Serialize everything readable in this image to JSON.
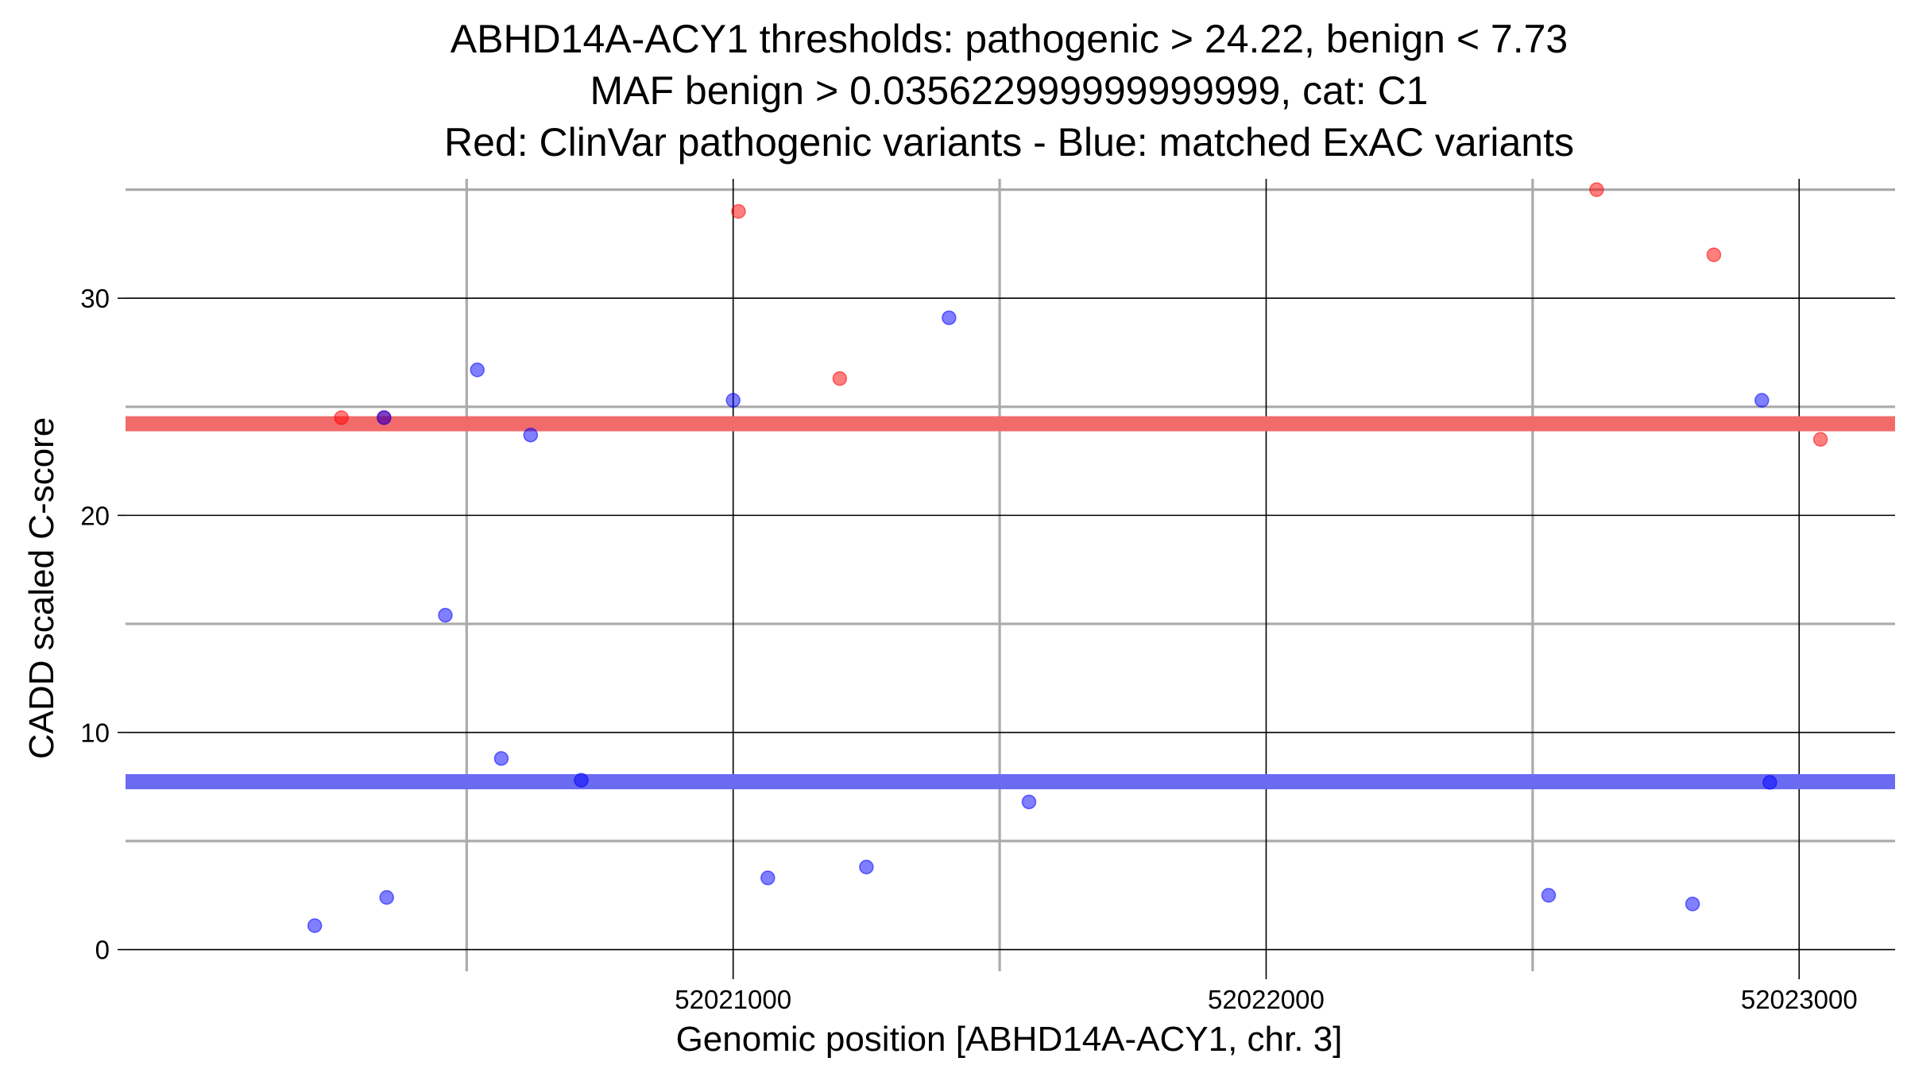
{
  "chart_data": {
    "type": "scatter",
    "title_lines": [
      "ABHD14A-ACY1 thresholds: pathogenic > 24.22, benign < 7.73",
      "MAF benign > 0.035622999999999999, cat: C1",
      "Red: ClinVar pathogenic variants - Blue: matched ExAC variants"
    ],
    "xlabel": "Genomic position [ABHD14A-ACY1, chr. 3]",
    "ylabel": "CADD scaled C-score",
    "xlim": [
      52019860,
      52023180
    ],
    "ylim": [
      -1,
      35.5
    ],
    "x_major_ticks": [
      52021000,
      52022000,
      52023000
    ],
    "x_minor_grid": [
      52020500,
      52021500,
      52022500
    ],
    "y_major_ticks": [
      0,
      10,
      20,
      30
    ],
    "y_minor_grid": [
      5,
      15,
      25,
      35
    ],
    "grid": true,
    "thresholds": [
      {
        "name": "pathogenic",
        "value": 24.22,
        "color": "#f26b6b"
      },
      {
        "name": "benign",
        "value": 7.73,
        "color": "#6b6bf2"
      }
    ],
    "series": [
      {
        "name": "ClinVar pathogenic variants",
        "color": "#ff0000",
        "points": [
          {
            "x": 52020265,
            "y": 24.5
          },
          {
            "x": 52020345,
            "y": 24.5
          },
          {
            "x": 52021010,
            "y": 34.0
          },
          {
            "x": 52021200,
            "y": 26.3
          },
          {
            "x": 52022620,
            "y": 35.0
          },
          {
            "x": 52022840,
            "y": 32.0
          },
          {
            "x": 52023040,
            "y": 23.5
          }
        ]
      },
      {
        "name": "matched ExAC variants",
        "color": "#0000ff",
        "points": [
          {
            "x": 52020215,
            "y": 1.1
          },
          {
            "x": 52020345,
            "y": 24.5
          },
          {
            "x": 52020350,
            "y": 2.4
          },
          {
            "x": 52020460,
            "y": 15.4
          },
          {
            "x": 52020520,
            "y": 26.7
          },
          {
            "x": 52020565,
            "y": 8.8
          },
          {
            "x": 52020620,
            "y": 23.7
          },
          {
            "x": 52020715,
            "y": 7.8
          },
          {
            "x": 52021000,
            "y": 25.3
          },
          {
            "x": 52021065,
            "y": 3.3
          },
          {
            "x": 52021250,
            "y": 3.8
          },
          {
            "x": 52021405,
            "y": 29.1
          },
          {
            "x": 52021555,
            "y": 6.8
          },
          {
            "x": 52022530,
            "y": 2.5
          },
          {
            "x": 52022800,
            "y": 2.1
          },
          {
            "x": 52022930,
            "y": 25.3
          },
          {
            "x": 52022945,
            "y": 7.7
          }
        ]
      }
    ]
  }
}
